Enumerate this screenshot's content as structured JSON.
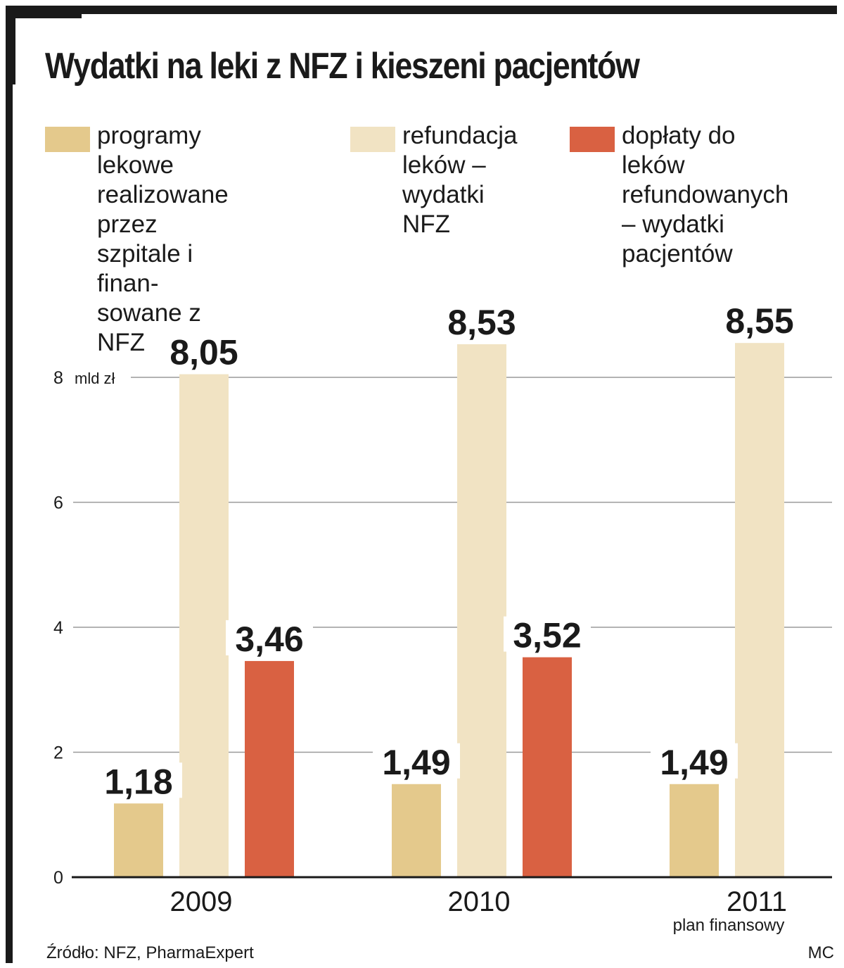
{
  "chart_data": {
    "type": "bar",
    "title": "Wydatki na leki z NFZ i kieszeni pacjentów",
    "unit": "mld zł",
    "categories": [
      "2009",
      "2010",
      "2011"
    ],
    "category_notes": [
      "",
      "",
      "plan finansowy"
    ],
    "series": [
      {
        "name": "programy lekowe realizowane przez szpitale i finan-sowane z NFZ",
        "label": "programy lekowe\nrealizowane przez\nszpitale i finan-\nsowane z NFZ",
        "color": "#e4c98c",
        "values": [
          1.18,
          1.49,
          1.49
        ],
        "value_labels": [
          "1,18",
          "1,49",
          "1,49"
        ]
      },
      {
        "name": "refundacja leków – wydatki NFZ",
        "label": "refundacja\nleków –\nwydatki\nNFZ",
        "color": "#f1e3c3",
        "values": [
          8.05,
          8.53,
          8.55
        ],
        "value_labels": [
          "8,05",
          "8,53",
          "8,55"
        ]
      },
      {
        "name": "dopłaty do leków refundowanych – wydatki pacjentów",
        "label": "dopłaty do leków\nrefundowanych\n– wydatki\npacjentów",
        "color": "#d96142",
        "values": [
          3.46,
          3.52,
          null
        ],
        "value_labels": [
          "3,46",
          "3,52",
          ""
        ]
      }
    ],
    "y_ticks": [
      0,
      2,
      4,
      6,
      8
    ],
    "y_tick_labels": [
      "0",
      "2",
      "4",
      "6",
      "8"
    ],
    "ylim": [
      0,
      8
    ],
    "grid": true,
    "legend": "top"
  },
  "source": "Źródło: NFZ, PharmaExpert",
  "credit": "MC"
}
